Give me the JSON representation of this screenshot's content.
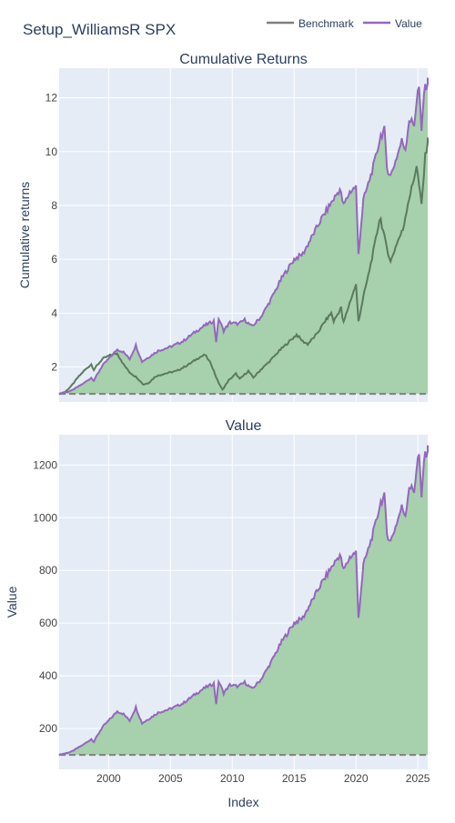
{
  "title": "Setup_WilliamsR SPX",
  "legend": {
    "placement": "top-right",
    "items": [
      {
        "label": "Benchmark",
        "color": "#7f7f7f"
      },
      {
        "label": "Value",
        "color": "#9467bd"
      }
    ]
  },
  "colors": {
    "plot_bg": "#e5ecf6",
    "grid": "#ffffff",
    "fill": "#a3cfa9",
    "benchmark_overlap": "#5b7a5e",
    "text": "#2a3f5f",
    "tick": "#444444"
  },
  "chart_data": [
    {
      "type": "line",
      "title": "Cumulative Returns",
      "xlabel": "",
      "ylabel": "Cumulative returns",
      "xlim": [
        1996,
        2025.8
      ],
      "ylim": [
        0.7,
        13.1
      ],
      "yticks": [
        2,
        4,
        6,
        8,
        10,
        12
      ],
      "grid": true,
      "baseline": 1,
      "series": [
        {
          "name": "Benchmark",
          "color": "#7f7f7f",
          "points": [
            [
              1996,
              1.0
            ],
            [
              1996.5,
              1.08
            ],
            [
              1997,
              1.3
            ],
            [
              1997.5,
              1.6
            ],
            [
              1998,
              1.85
            ],
            [
              1998.6,
              2.1
            ],
            [
              1998.8,
              1.9
            ],
            [
              1999.5,
              2.3
            ],
            [
              2000.2,
              2.45
            ],
            [
              2000.7,
              2.5
            ],
            [
              2001.2,
              2.1
            ],
            [
              2001.7,
              1.8
            ],
            [
              2002.3,
              1.6
            ],
            [
              2002.8,
              1.35
            ],
            [
              2003.2,
              1.4
            ],
            [
              2003.8,
              1.65
            ],
            [
              2004.5,
              1.75
            ],
            [
              2005.5,
              1.85
            ],
            [
              2006.5,
              2.1
            ],
            [
              2007.3,
              2.35
            ],
            [
              2007.8,
              2.45
            ],
            [
              2008.3,
              2.1
            ],
            [
              2008.8,
              1.5
            ],
            [
              2009.2,
              1.15
            ],
            [
              2009.7,
              1.5
            ],
            [
              2010.3,
              1.75
            ],
            [
              2010.6,
              1.55
            ],
            [
              2011.3,
              1.85
            ],
            [
              2011.7,
              1.6
            ],
            [
              2012.3,
              1.9
            ],
            [
              2013,
              2.2
            ],
            [
              2013.8,
              2.6
            ],
            [
              2014.5,
              2.9
            ],
            [
              2015.2,
              3.2
            ],
            [
              2015.7,
              2.95
            ],
            [
              2016.1,
              2.85
            ],
            [
              2016.8,
              3.2
            ],
            [
              2017.5,
              3.7
            ],
            [
              2018,
              4.0
            ],
            [
              2018.2,
              3.7
            ],
            [
              2018.8,
              4.2
            ],
            [
              2018.97,
              3.6
            ],
            [
              2019.5,
              4.4
            ],
            [
              2020.0,
              5.05
            ],
            [
              2020.2,
              3.7
            ],
            [
              2020.6,
              4.6
            ],
            [
              2021,
              5.4
            ],
            [
              2021.5,
              6.5
            ],
            [
              2021.95,
              7.6
            ],
            [
              2022.4,
              6.6
            ],
            [
              2022.8,
              5.9
            ],
            [
              2023.3,
              6.6
            ],
            [
              2023.8,
              7.1
            ],
            [
              2024.2,
              8.1
            ],
            [
              2024.6,
              8.8
            ],
            [
              2024.9,
              9.5
            ],
            [
              2025.3,
              8.0
            ],
            [
              2025.6,
              9.8
            ],
            [
              2025.8,
              10.4
            ]
          ]
        },
        {
          "name": "Value",
          "color": "#9467bd",
          "points": [
            [
              1996,
              1.0
            ],
            [
              1997,
              1.12
            ],
            [
              1998,
              1.4
            ],
            [
              1998.6,
              1.6
            ],
            [
              1998.8,
              1.5
            ],
            [
              1999.5,
              2.05
            ],
            [
              2000.2,
              2.4
            ],
            [
              2000.7,
              2.65
            ],
            [
              2001.2,
              2.55
            ],
            [
              2001.7,
              2.3
            ],
            [
              2002.2,
              2.8
            ],
            [
              2002.7,
              2.2
            ],
            [
              2003.2,
              2.35
            ],
            [
              2004,
              2.6
            ],
            [
              2005,
              2.75
            ],
            [
              2006,
              2.95
            ],
            [
              2007,
              3.3
            ],
            [
              2007.8,
              3.55
            ],
            [
              2008.5,
              3.7
            ],
            [
              2008.7,
              2.95
            ],
            [
              2008.9,
              3.8
            ],
            [
              2009.3,
              3.35
            ],
            [
              2009.8,
              3.65
            ],
            [
              2010.5,
              3.6
            ],
            [
              2011,
              3.75
            ],
            [
              2011.6,
              3.5
            ],
            [
              2012.3,
              3.85
            ],
            [
              2013,
              4.4
            ],
            [
              2014,
              5.3
            ],
            [
              2015,
              6.0
            ],
            [
              2015.7,
              6.2
            ],
            [
              2016.4,
              6.8
            ],
            [
              2017.2,
              7.5
            ],
            [
              2018,
              8.1
            ],
            [
              2018.7,
              8.6
            ],
            [
              2019,
              8.0
            ],
            [
              2019.5,
              8.5
            ],
            [
              2020,
              8.7
            ],
            [
              2020.2,
              6.2
            ],
            [
              2020.6,
              8.2
            ],
            [
              2021,
              8.8
            ],
            [
              2021.5,
              9.6
            ],
            [
              2022,
              10.6
            ],
            [
              2022.3,
              10.8
            ],
            [
              2022.5,
              9.4
            ],
            [
              2022.8,
              9.1
            ],
            [
              2023.3,
              9.8
            ],
            [
              2023.7,
              10.4
            ],
            [
              2024,
              10.1
            ],
            [
              2024.3,
              11.2
            ],
            [
              2024.7,
              11.0
            ],
            [
              2024.95,
              12.1
            ],
            [
              2025.1,
              12.4
            ],
            [
              2025.3,
              10.7
            ],
            [
              2025.5,
              12.2
            ],
            [
              2025.8,
              12.6
            ]
          ]
        }
      ]
    },
    {
      "type": "area",
      "title": "Value",
      "xlabel": "Index",
      "ylabel": "Value",
      "xlim": [
        1996,
        2025.8
      ],
      "ylim": [
        45,
        1315
      ],
      "xticks": [
        2000,
        2005,
        2010,
        2015,
        2020,
        2025
      ],
      "yticks": [
        200,
        400,
        600,
        800,
        1000,
        1200
      ],
      "grid": true,
      "baseline": 100,
      "series": [
        {
          "name": "Value",
          "color": "#9467bd",
          "points": [
            [
              1996,
              100
            ],
            [
              1997,
              112
            ],
            [
              1998,
              140
            ],
            [
              1998.6,
              160
            ],
            [
              1998.8,
              150
            ],
            [
              1999.5,
              205
            ],
            [
              2000.2,
              240
            ],
            [
              2000.7,
              265
            ],
            [
              2001.2,
              255
            ],
            [
              2001.7,
              230
            ],
            [
              2002.2,
              280
            ],
            [
              2002.7,
              220
            ],
            [
              2003.2,
              235
            ],
            [
              2004,
              260
            ],
            [
              2005,
              275
            ],
            [
              2006,
              295
            ],
            [
              2007,
              330
            ],
            [
              2007.8,
              355
            ],
            [
              2008.5,
              370
            ],
            [
              2008.7,
              295
            ],
            [
              2008.9,
              380
            ],
            [
              2009.3,
              335
            ],
            [
              2009.8,
              365
            ],
            [
              2010.5,
              360
            ],
            [
              2011,
              375
            ],
            [
              2011.6,
              350
            ],
            [
              2012.3,
              385
            ],
            [
              2013,
              440
            ],
            [
              2014,
              530
            ],
            [
              2015,
              600
            ],
            [
              2015.7,
              620
            ],
            [
              2016.4,
              680
            ],
            [
              2017.2,
              750
            ],
            [
              2018,
              810
            ],
            [
              2018.7,
              860
            ],
            [
              2019,
              800
            ],
            [
              2019.5,
              850
            ],
            [
              2020,
              870
            ],
            [
              2020.2,
              620
            ],
            [
              2020.6,
              820
            ],
            [
              2021,
              880
            ],
            [
              2021.5,
              960
            ],
            [
              2022,
              1060
            ],
            [
              2022.3,
              1080
            ],
            [
              2022.5,
              940
            ],
            [
              2022.8,
              910
            ],
            [
              2023.3,
              980
            ],
            [
              2023.7,
              1040
            ],
            [
              2024,
              1010
            ],
            [
              2024.3,
              1120
            ],
            [
              2024.7,
              1100
            ],
            [
              2024.95,
              1210
            ],
            [
              2025.1,
              1240
            ],
            [
              2025.3,
              1070
            ],
            [
              2025.5,
              1220
            ],
            [
              2025.8,
              1260
            ]
          ]
        }
      ]
    }
  ]
}
